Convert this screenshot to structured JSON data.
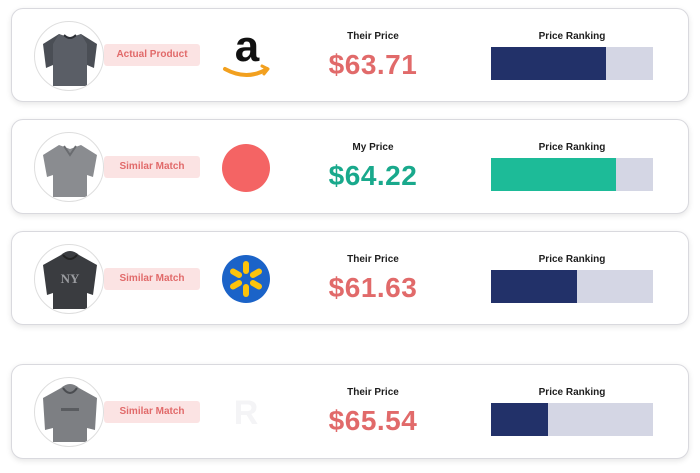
{
  "colors": {
    "price_red": "#e16a6a",
    "price_green": "#19a98c",
    "bar_navy": "#223169",
    "bar_green": "#1dbb98",
    "bar_track": "#d4d6e4",
    "badge_bg": "#fbe3e3"
  },
  "rows": [
    {
      "badge": "Actual Product",
      "store_icon": "amazon-logo-icon",
      "price_label": "Their Price",
      "price": "$63.71",
      "rank_label": "Price Ranking",
      "rank_fraction": 0.71,
      "bar_color": "#223169",
      "price_color": "#e16a6a"
    },
    {
      "badge": "Similar Match",
      "store_icon": "red-circle-store-icon",
      "price_label": "My Price",
      "price": "$64.22",
      "rank_label": "Price Ranking",
      "rank_fraction": 0.77,
      "bar_color": "#1dbb98",
      "price_color": "#19a98c"
    },
    {
      "badge": "Similar Match",
      "store_icon": "walmart-logo-icon",
      "price_label": "Their Price",
      "price": "$61.63",
      "rank_label": "Price Ranking",
      "rank_fraction": 0.53,
      "bar_color": "#223169",
      "price_color": "#e16a6a"
    },
    {
      "badge": "Similar Match",
      "store_icon": "faded-store-icon",
      "price_label": "Their Price",
      "price": "$65.54",
      "rank_label": "Price Ranking",
      "rank_fraction": 0.35,
      "bar_color": "#223169",
      "price_color": "#e16a6a"
    }
  ]
}
